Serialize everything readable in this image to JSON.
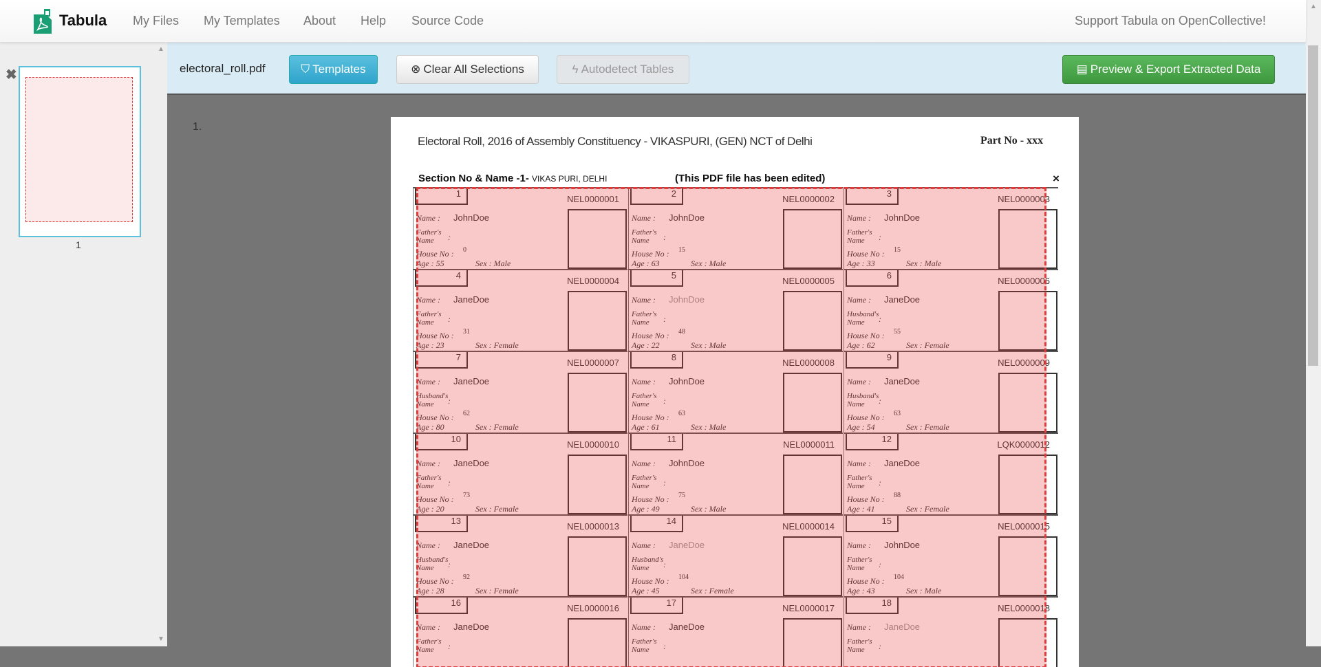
{
  "nav": {
    "brand": "Tabula",
    "links": [
      "My Files",
      "My Templates",
      "About",
      "Help",
      "Source Code"
    ],
    "support": "Support Tabula on OpenCollective!"
  },
  "sidebar": {
    "page_label": "1"
  },
  "toolbar": {
    "filename": "electoral_roll.pdf",
    "templates": "Templates",
    "clear": "Clear All Selections",
    "autodetect": "Autodetect Tables",
    "preview": "Preview & Export Extracted Data"
  },
  "colors": {
    "templates": "#5bc0de",
    "preview": "#5cb85c",
    "toolbar_bg": "#d9ebf5",
    "selection": "#e03c3c"
  },
  "page": {
    "number": "1.",
    "header": "Electoral Roll, 2016 of Assembly Constituency - VIKASPURI,  (GEN) NCT of Delhi",
    "part_no": "Part No - xxx",
    "section_label": "Section No & Name -1-",
    "section_name": "VIKAS PURI, DELHI",
    "edited": "(This PDF file has been edited)",
    "close": "×",
    "labels": {
      "name": "Name :",
      "house": "House No :",
      "age": "Age :",
      "sex": "Sex :"
    },
    "entries": [
      {
        "n": "1",
        "id": "NEL0000001",
        "name": "JohnDoe",
        "rel": "Father's Name",
        "house": "0",
        "age": "55",
        "sex": "Male"
      },
      {
        "n": "2",
        "id": "NEL0000002",
        "name": "JohnDoe",
        "rel": "Father's Name",
        "house": "15",
        "age": "63",
        "sex": "Male"
      },
      {
        "n": "3",
        "id": "NEL0000003",
        "name": "JohnDoe",
        "rel": "Father's Name",
        "house": "15",
        "age": "33",
        "sex": "Male"
      },
      {
        "n": "4",
        "id": "NEL0000004",
        "name": "JaneDoe",
        "rel": "Father's Name",
        "house": "31",
        "age": "23",
        "sex": "Female"
      },
      {
        "n": "5",
        "id": "NEL0000005",
        "name": "JohnDoe",
        "rel": "Father's Name",
        "house": "48",
        "age": "22",
        "sex": "Male",
        "faint": true
      },
      {
        "n": "6",
        "id": "NEL0000006",
        "name": "JaneDoe",
        "rel": "Husband's Name",
        "house": "55",
        "age": "62",
        "sex": "Female"
      },
      {
        "n": "7",
        "id": "NEL0000007",
        "name": "JaneDoe",
        "rel": "Husband's Name",
        "house": "62",
        "age": "80",
        "sex": "Female"
      },
      {
        "n": "8",
        "id": "NEL0000008",
        "name": "JohnDoe",
        "rel": "Father's Name",
        "house": "63",
        "age": "61",
        "sex": "Male"
      },
      {
        "n": "9",
        "id": "NEL0000009",
        "name": "JaneDoe",
        "rel": "Husband's Name",
        "house": "63",
        "age": "54",
        "sex": "Female"
      },
      {
        "n": "10",
        "id": "NEL0000010",
        "name": "JaneDoe",
        "rel": "Father's Name",
        "house": "73",
        "age": "20",
        "sex": "Female"
      },
      {
        "n": "11",
        "id": "NEL0000011",
        "name": "JohnDoe",
        "rel": "Father's Name",
        "house": "75",
        "age": "49",
        "sex": "Male"
      },
      {
        "n": "12",
        "id": "LQK0000012",
        "name": "JaneDoe",
        "rel": "Father's Name",
        "house": "88",
        "age": "41",
        "sex": "Female"
      },
      {
        "n": "13",
        "id": "NEL0000013",
        "name": "JaneDoe",
        "rel": "Husband's Name",
        "house": "92",
        "age": "28",
        "sex": "Female"
      },
      {
        "n": "14",
        "id": "NEL0000014",
        "name": "JaneDoe",
        "rel": "Husband's Name",
        "house": "104",
        "age": "45",
        "sex": "Female",
        "faint": true
      },
      {
        "n": "15",
        "id": "NEL0000015",
        "name": "JohnDoe",
        "rel": "Father's Name",
        "house": "104",
        "age": "43",
        "sex": "Male"
      },
      {
        "n": "16",
        "id": "NEL0000016",
        "name": "JaneDoe",
        "rel": "Father's Name",
        "house": "",
        "age": "",
        "sex": ""
      },
      {
        "n": "17",
        "id": "NEL0000017",
        "name": "JaneDoe",
        "rel": "Father's Name",
        "house": "",
        "age": "",
        "sex": ""
      },
      {
        "n": "18",
        "id": "NEL0000018",
        "name": "JaneDoe",
        "rel": "Father's Name",
        "house": "",
        "age": "",
        "sex": "",
        "faint": true
      }
    ]
  }
}
